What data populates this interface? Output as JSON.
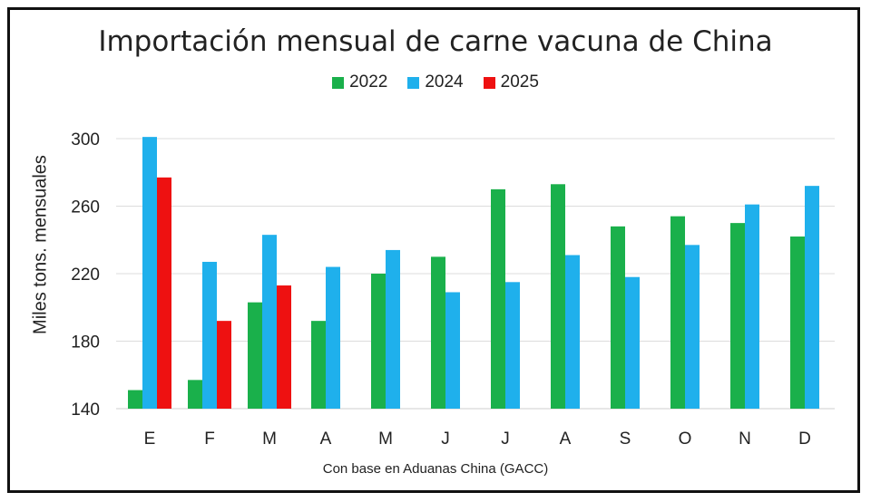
{
  "chart_data": {
    "type": "bar",
    "title": "Importación mensual de carne vacuna de China",
    "ylabel": "Miles tons. mensuales",
    "xlabel": "Con base en Aduanas China (GACC)",
    "categories": [
      "E",
      "F",
      "M",
      "A",
      "M",
      "J",
      "J",
      "A",
      "S",
      "O",
      "N",
      "D"
    ],
    "ylim": [
      140,
      300
    ],
    "yticks": [
      140,
      180,
      220,
      260,
      300
    ],
    "grid": true,
    "legend_position": "top",
    "series": [
      {
        "name": "2022",
        "color": "#1ab04b",
        "values": [
          151,
          157,
          203,
          192,
          220,
          230,
          270,
          273,
          248,
          254,
          250,
          242
        ]
      },
      {
        "name": "2024",
        "color": "#1fb0ec",
        "values": [
          301,
          227,
          243,
          224,
          234,
          209,
          215,
          231,
          218,
          237,
          261,
          272
        ]
      },
      {
        "name": "2025",
        "color": "#ee1111",
        "values": [
          277,
          192,
          213,
          null,
          null,
          null,
          null,
          null,
          null,
          null,
          null,
          null
        ]
      }
    ]
  }
}
